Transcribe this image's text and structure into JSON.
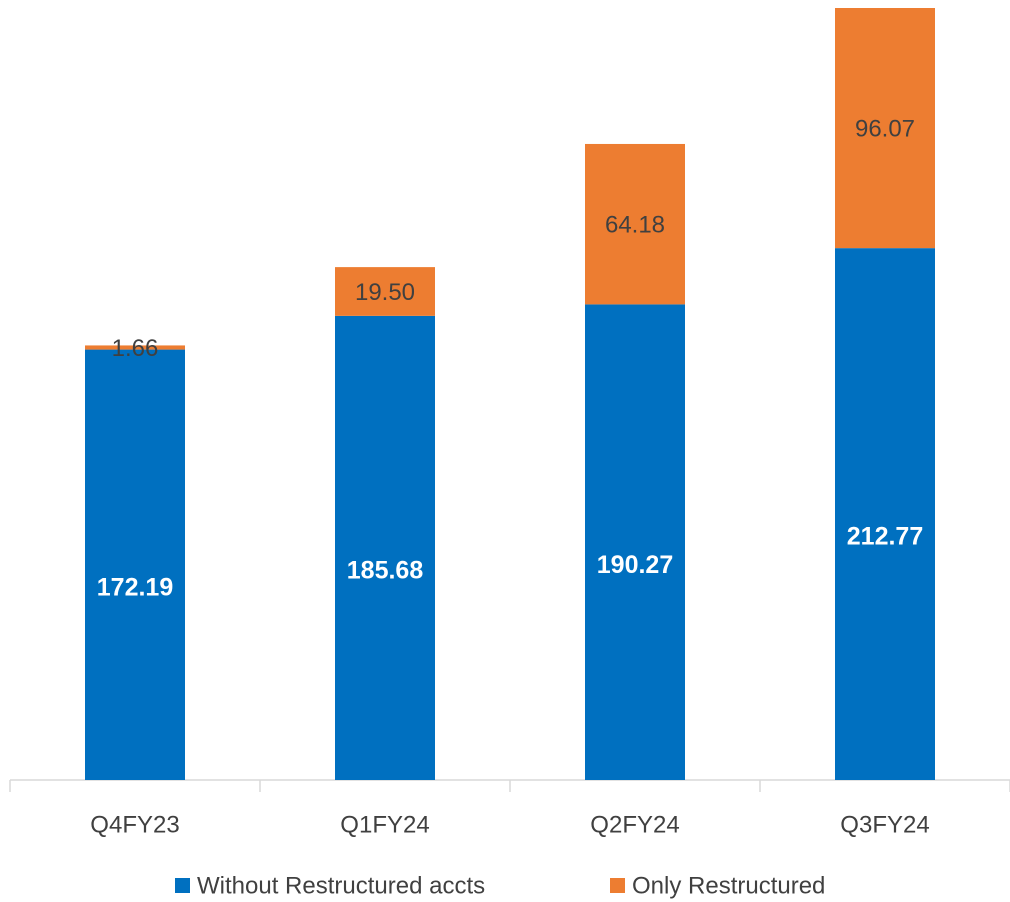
{
  "chart_data": {
    "type": "stacked_bar",
    "categories": [
      "Q4FY23",
      "Q1FY24",
      "Q2FY24",
      "Q3FY24"
    ],
    "series": [
      {
        "name": "Without Restructured accts",
        "color": "#0070c0",
        "values": [
          172.19,
          185.68,
          190.27,
          212.77
        ],
        "value_labels": [
          "172.19",
          "185.68",
          "190.27",
          "212.77"
        ]
      },
      {
        "name": "Only Restructured",
        "color": "#ed7d31",
        "values": [
          1.66,
          19.5,
          64.18,
          96.07
        ],
        "value_labels": [
          "1.66",
          "19.50",
          "64.18",
          "96.07"
        ]
      }
    ],
    "legend": "bottom"
  }
}
